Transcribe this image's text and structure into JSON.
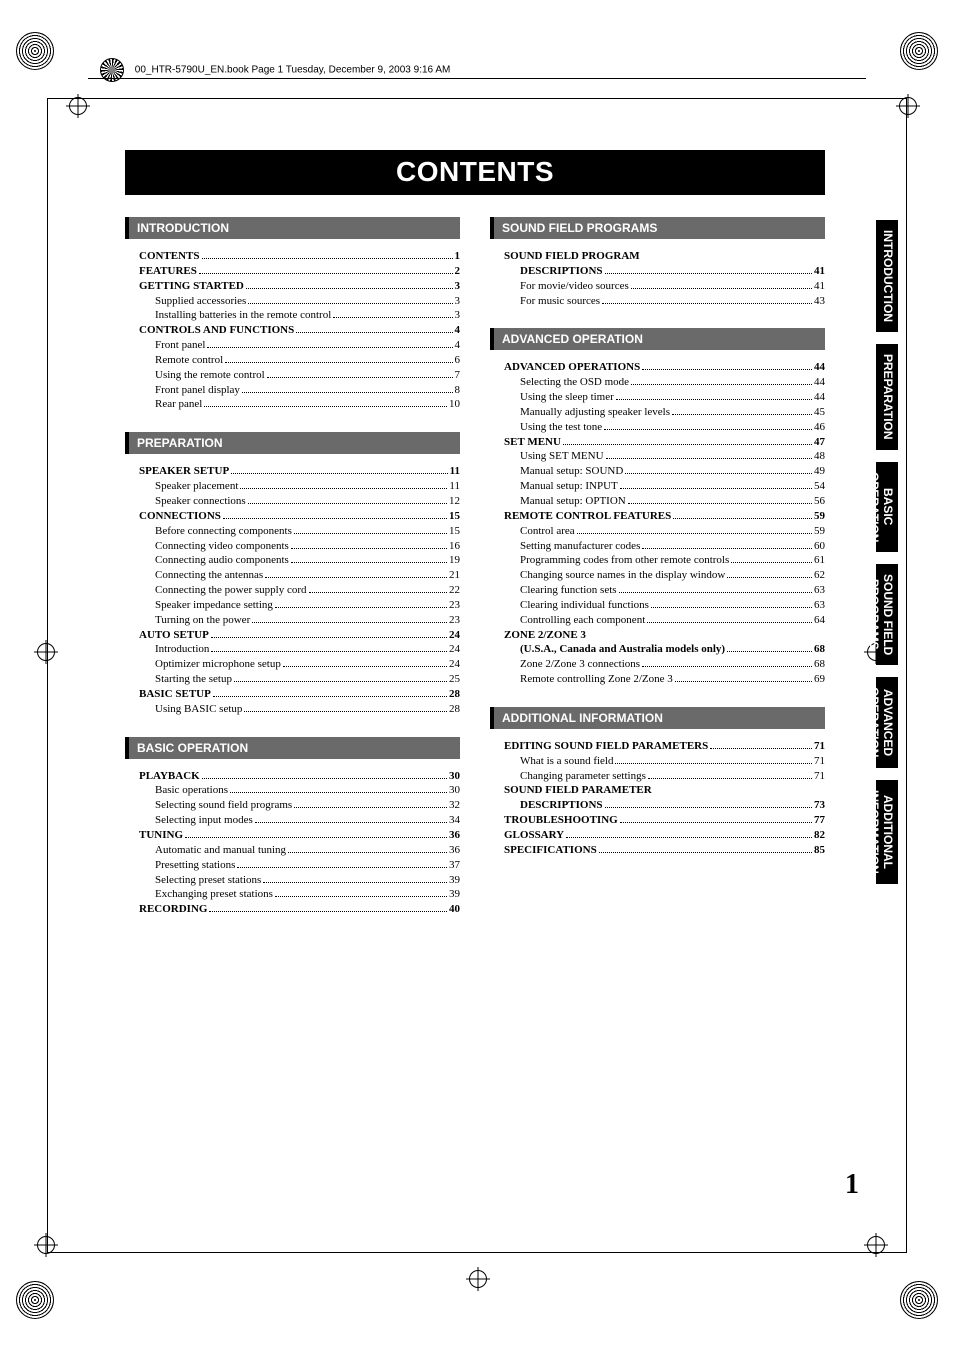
{
  "header_path": "00_HTR-5790U_EN.book  Page 1  Tuesday, December 9, 2003  9:16 AM",
  "title": "CONTENTS",
  "page_number": "1",
  "colors": {
    "title_bg": "#000000",
    "title_fg": "#ffffff",
    "section_bg": "#6a6a6a",
    "section_border": "#000000",
    "tab_bg": "#000000",
    "tab_fg": "#ffffff",
    "text": "#000000"
  },
  "tabs": [
    "INTRODUCTION",
    "PREPARATION",
    "BASIC\nOPERATION",
    "SOUND FIELD\nPROGRAMS",
    "ADVANCED\nOPERATION",
    "ADDITIONAL\nINFORMATION"
  ],
  "left": [
    {
      "head": "INTRODUCTION",
      "items": [
        {
          "l": 0,
          "t": "CONTENTS",
          "p": "1"
        },
        {
          "l": 0,
          "t": "FEATURES",
          "p": "2"
        },
        {
          "l": 0,
          "t": "GETTING STARTED",
          "p": "3"
        },
        {
          "l": 1,
          "t": "Supplied accessories",
          "p": "3"
        },
        {
          "l": 1,
          "t": "Installing batteries in the remote control",
          "p": "3"
        },
        {
          "l": 0,
          "t": "CONTROLS AND FUNCTIONS",
          "p": "4"
        },
        {
          "l": 1,
          "t": "Front panel",
          "p": "4"
        },
        {
          "l": 1,
          "t": "Remote control",
          "p": "6"
        },
        {
          "l": 1,
          "t": "Using the remote control",
          "p": "7"
        },
        {
          "l": 1,
          "t": "Front panel display",
          "p": "8"
        },
        {
          "l": 1,
          "t": "Rear panel",
          "p": "10"
        }
      ]
    },
    {
      "head": "PREPARATION",
      "items": [
        {
          "l": 0,
          "t": "SPEAKER SETUP",
          "p": "11"
        },
        {
          "l": 1,
          "t": "Speaker placement",
          "p": "11"
        },
        {
          "l": 1,
          "t": "Speaker connections",
          "p": "12"
        },
        {
          "l": 0,
          "t": "CONNECTIONS",
          "p": "15"
        },
        {
          "l": 1,
          "t": "Before connecting components",
          "p": "15"
        },
        {
          "l": 1,
          "t": "Connecting video components",
          "p": "16"
        },
        {
          "l": 1,
          "t": "Connecting audio components",
          "p": "19"
        },
        {
          "l": 1,
          "t": "Connecting the antennas",
          "p": "21"
        },
        {
          "l": 1,
          "t": "Connecting the power supply cord",
          "p": "22"
        },
        {
          "l": 1,
          "t": "Speaker impedance setting",
          "p": "23"
        },
        {
          "l": 1,
          "t": "Turning on the power",
          "p": "23"
        },
        {
          "l": 0,
          "t": "AUTO SETUP",
          "p": "24"
        },
        {
          "l": 1,
          "t": "Introduction",
          "p": "24"
        },
        {
          "l": 1,
          "t": "Optimizer microphone setup",
          "p": "24"
        },
        {
          "l": 1,
          "t": "Starting the setup",
          "p": "25"
        },
        {
          "l": 0,
          "t": "BASIC SETUP",
          "p": "28"
        },
        {
          "l": 1,
          "t": "Using BASIC setup",
          "p": "28"
        }
      ]
    },
    {
      "head": "BASIC OPERATION",
      "items": [
        {
          "l": 0,
          "t": "PLAYBACK",
          "p": "30"
        },
        {
          "l": 1,
          "t": "Basic operations",
          "p": "30"
        },
        {
          "l": 1,
          "t": "Selecting sound field programs",
          "p": "32"
        },
        {
          "l": 1,
          "t": "Selecting input modes",
          "p": "34"
        },
        {
          "l": 0,
          "t": "TUNING",
          "p": "36"
        },
        {
          "l": 1,
          "t": "Automatic and manual tuning",
          "p": "36"
        },
        {
          "l": 1,
          "t": "Presetting stations",
          "p": "37"
        },
        {
          "l": 1,
          "t": "Selecting preset stations",
          "p": "39"
        },
        {
          "l": 1,
          "t": "Exchanging preset stations",
          "p": "39"
        },
        {
          "l": 0,
          "t": "RECORDING",
          "p": "40"
        }
      ]
    }
  ],
  "right": [
    {
      "head": "SOUND FIELD PROGRAMS",
      "items": [
        {
          "l": 0,
          "t": "SOUND FIELD PROGRAM",
          "nopage": true
        },
        {
          "l": 0,
          "t": "DESCRIPTIONS",
          "p": "41",
          "continued": true
        },
        {
          "l": 1,
          "t": "For movie/video sources",
          "p": "41"
        },
        {
          "l": 1,
          "t": "For music sources",
          "p": "43"
        }
      ]
    },
    {
      "head": "ADVANCED OPERATION",
      "items": [
        {
          "l": 0,
          "t": "ADVANCED OPERATIONS",
          "p": "44"
        },
        {
          "l": 1,
          "t": "Selecting the OSD mode",
          "p": "44"
        },
        {
          "l": 1,
          "t": "Using the sleep timer",
          "p": "44"
        },
        {
          "l": 1,
          "t": "Manually adjusting speaker levels",
          "p": "45"
        },
        {
          "l": 1,
          "t": "Using the test tone",
          "p": "46"
        },
        {
          "l": 0,
          "t": "SET MENU",
          "p": "47"
        },
        {
          "l": 1,
          "t": "Using SET MENU",
          "p": "48"
        },
        {
          "l": 1,
          "t": "Manual setup: SOUND",
          "p": "49"
        },
        {
          "l": 1,
          "t": "Manual setup: INPUT",
          "p": "54"
        },
        {
          "l": 1,
          "t": "Manual setup: OPTION",
          "p": "56"
        },
        {
          "l": 0,
          "t": "REMOTE CONTROL FEATURES",
          "p": "59"
        },
        {
          "l": 1,
          "t": "Control area",
          "p": "59"
        },
        {
          "l": 1,
          "t": "Setting manufacturer codes",
          "p": "60"
        },
        {
          "l": 1,
          "t": "Programming codes from other remote controls",
          "p": "61"
        },
        {
          "l": 1,
          "t": "Changing source names in the display window",
          "p": "62"
        },
        {
          "l": 1,
          "t": "Clearing function sets",
          "p": "63"
        },
        {
          "l": 1,
          "t": "Clearing individual functions",
          "p": "63"
        },
        {
          "l": 1,
          "t": "Controlling each component",
          "p": "64"
        },
        {
          "l": 0,
          "t": "ZONE 2/ZONE 3",
          "nopage": true
        },
        {
          "l": 0,
          "t": "(U.S.A., Canada and Australia models only)",
          "p": "68",
          "continued": true
        },
        {
          "l": 1,
          "t": "Zone 2/Zone 3 connections",
          "p": "68"
        },
        {
          "l": 1,
          "t": "Remote controlling Zone 2/Zone 3",
          "p": "69"
        }
      ]
    },
    {
      "head": "ADDITIONAL INFORMATION",
      "items": [
        {
          "l": 0,
          "t": "EDITING SOUND FIELD PARAMETERS",
          "p": "71"
        },
        {
          "l": 1,
          "t": "What is a sound field",
          "p": "71"
        },
        {
          "l": 1,
          "t": "Changing parameter settings",
          "p": "71"
        },
        {
          "l": 0,
          "t": "SOUND FIELD PARAMETER",
          "nopage": true
        },
        {
          "l": 0,
          "t": "DESCRIPTIONS",
          "p": "73",
          "continued": true
        },
        {
          "l": 0,
          "t": "TROUBLESHOOTING",
          "p": "77"
        },
        {
          "l": 0,
          "t": "GLOSSARY",
          "p": "82"
        },
        {
          "l": 0,
          "t": "SPECIFICATIONS",
          "p": "85"
        }
      ]
    }
  ]
}
